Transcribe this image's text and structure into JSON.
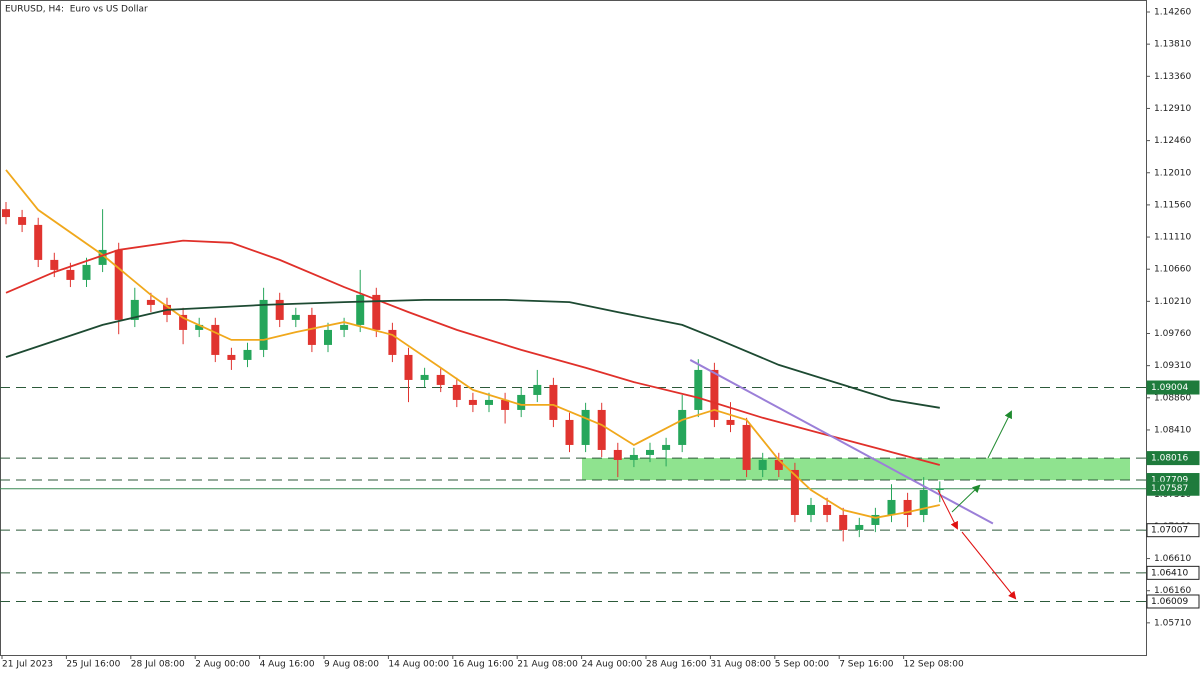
{
  "chart_data": {
    "type": "candlestick",
    "title": "EURUSD, H4:  Euro vs US Dollar",
    "categories": [
      "21 Jul 2023",
      null,
      null,
      null,
      "25 Jul 16:00",
      null,
      null,
      null,
      "28 Jul 08:00",
      null,
      null,
      null,
      "2 Aug 00:00",
      null,
      null,
      null,
      "4 Aug 16:00",
      null,
      null,
      null,
      "9 Aug 08:00",
      null,
      null,
      null,
      "14 Aug 00:00",
      null,
      null,
      null,
      "16 Aug 16:00",
      null,
      null,
      null,
      "21 Aug 08:00",
      null,
      null,
      null,
      "24 Aug 00:00",
      null,
      null,
      null,
      "28 Aug 16:00",
      null,
      null,
      null,
      "31 Aug 08:00",
      null,
      null,
      null,
      "5 Sep 00:00",
      null,
      null,
      null,
      "7 Sep 16:00",
      null,
      null,
      null,
      "12 Sep 08:00",
      null,
      null
    ],
    "open": [
      1.115,
      1.1139,
      1.1128,
      1.1079,
      1.1065,
      1.1051,
      1.1072,
      1.1093,
      1.0995,
      1.1023,
      1.1016,
      1.1002,
      1.0981,
      1.0988,
      1.0946,
      1.0939,
      1.0953,
      1.1023,
      1.0995,
      1.1002,
      1.096,
      1.0981,
      1.0988,
      1.103,
      1.0981,
      1.0946,
      1.0911,
      1.0918,
      1.0904,
      1.0883,
      1.0876,
      1.0883,
      1.0869,
      1.089,
      1.0904,
      1.0855,
      1.082,
      1.0869,
      1.0813,
      1.0799,
      1.0806,
      1.0813,
      1.082,
      1.0869,
      1.0925,
      1.0855,
      1.0848,
      1.0785,
      1.0799,
      1.0785,
      1.0722,
      1.0736,
      1.0722,
      1.0701,
      1.0708,
      1.0722,
      1.0743,
      1.0722,
      1.0757
    ],
    "high": [
      1.116,
      1.1149,
      1.1138,
      1.1089,
      1.1075,
      1.1082,
      1.115,
      1.1103,
      1.104,
      1.1033,
      1.1026,
      1.1012,
      1.0998,
      1.0998,
      1.0956,
      1.0963,
      1.104,
      1.1033,
      1.1012,
      1.1012,
      1.0991,
      1.0998,
      1.1065,
      1.104,
      1.0991,
      1.0956,
      1.0928,
      1.0928,
      1.0914,
      1.0893,
      1.0893,
      1.0893,
      1.09,
      1.0925,
      1.0914,
      1.0865,
      1.0879,
      1.0879,
      1.0823,
      1.0816,
      1.0823,
      1.083,
      1.089,
      1.094,
      1.0935,
      1.088,
      1.0858,
      1.0809,
      1.0809,
      1.0795,
      1.0746,
      1.0746,
      1.0732,
      1.0718,
      1.0732,
      1.0765,
      1.0753,
      1.0775,
      1.0769
    ],
    "low": [
      1.1129,
      1.1118,
      1.1069,
      1.1055,
      1.1041,
      1.1041,
      1.1062,
      1.0975,
      1.0985,
      1.1006,
      1.0992,
      1.0961,
      1.0971,
      1.0936,
      1.0925,
      1.0929,
      1.0943,
      1.0985,
      1.0985,
      1.095,
      1.095,
      1.0971,
      1.0978,
      1.0971,
      1.0936,
      1.088,
      1.0901,
      1.0894,
      1.0873,
      1.0866,
      1.0866,
      1.085,
      1.0859,
      1.088,
      1.0845,
      1.081,
      1.081,
      1.0803,
      1.0775,
      1.0789,
      1.0796,
      1.079,
      1.081,
      1.0859,
      1.0845,
      1.0838,
      1.0775,
      1.0775,
      1.0775,
      1.0712,
      1.0712,
      1.0712,
      1.0685,
      1.0691,
      1.0698,
      1.0712,
      1.0705,
      1.0712,
      1.074
    ],
    "close": [
      1.1139,
      1.1128,
      1.1079,
      1.1065,
      1.1051,
      1.1072,
      1.1093,
      1.0995,
      1.1023,
      1.1016,
      1.1002,
      1.0981,
      1.0988,
      1.0946,
      1.0939,
      1.0953,
      1.1023,
      1.0995,
      1.1002,
      1.096,
      1.0981,
      1.0988,
      1.103,
      1.0981,
      1.0946,
      1.0911,
      1.0918,
      1.0904,
      1.0883,
      1.0876,
      1.0883,
      1.0869,
      1.089,
      1.0904,
      1.0855,
      1.082,
      1.0869,
      1.0813,
      1.0799,
      1.0806,
      1.0813,
      1.082,
      1.0869,
      1.0925,
      1.0855,
      1.0848,
      1.0785,
      1.0799,
      1.0785,
      1.0722,
      1.0736,
      1.0722,
      1.0701,
      1.0708,
      1.0722,
      1.0743,
      1.0722,
      1.0757,
      1.0759
    ],
    "up_color": "#26a65b",
    "down_color": "#e0342f",
    "series": [
      {
        "color": "#f0a81c",
        "x": [
          0,
          2,
          6,
          9,
          11,
          14,
          16,
          18,
          21,
          24,
          27,
          29,
          32,
          34,
          37,
          39,
          42,
          44,
          46,
          48,
          50,
          52,
          54,
          56,
          58
        ],
        "values": [
          1.1205,
          1.1149,
          1.1086,
          1.103,
          1.0998,
          1.0967,
          1.0967,
          1.0978,
          1.0992,
          1.0974,
          1.0928,
          1.0897,
          1.0876,
          1.0876,
          1.0848,
          1.082,
          1.0855,
          1.0869,
          1.0855,
          1.0799,
          1.0757,
          1.0729,
          1.0718,
          1.0726,
          1.0736
        ]
      },
      {
        "color": "#e0302a",
        "x": [
          0,
          3,
          7,
          11,
          14,
          17,
          21,
          25,
          28,
          32,
          36,
          39,
          43,
          47,
          51,
          55,
          58
        ],
        "values": [
          1.1033,
          1.1062,
          1.1093,
          1.1106,
          1.1103,
          1.1079,
          1.1041,
          1.1006,
          1.0981,
          1.0953,
          1.0928,
          1.0908,
          1.0886,
          1.0858,
          1.0834,
          1.081,
          1.0792
        ]
      },
      {
        "color": "#1d4a32",
        "x": [
          0,
          6,
          10,
          16,
          21,
          26,
          31,
          35,
          38,
          42,
          44,
          48,
          52,
          55,
          58
        ],
        "values": [
          1.0943,
          1.0988,
          1.1009,
          1.1016,
          1.102,
          1.1023,
          1.1023,
          1.102,
          1.1006,
          1.0988,
          1.097,
          1.0932,
          1.0904,
          1.0883,
          1.0872
        ]
      }
    ],
    "trendline": {
      "color": "#9b7fd8",
      "x": [
        42.5,
        61.3
      ],
      "values": [
        1.0939,
        1.071
      ]
    },
    "zone": {
      "from": 1.07709,
      "to": 1.08016,
      "color": "#8fe38f"
    },
    "levels": [
      {
        "value": 1.09004,
        "box": "#1e7b3c"
      },
      {
        "value": 1.08016,
        "box": "#1e7b3c"
      },
      {
        "value": 1.07709,
        "box": "#1e7b3c"
      },
      {
        "value": 1.07007,
        "box": "#ffffff"
      },
      {
        "value": 1.0641,
        "label": "1.06410",
        "box": "#ffffff"
      },
      {
        "value": 1.06009,
        "box": "#ffffff"
      }
    ],
    "last": 1.07587,
    "ylim": [
      1.0526,
      1.144
    ],
    "yticks": [
      {
        "value": 1.1426,
        "label": "1.14260"
      },
      {
        "value": 1.1381,
        "label": "1.13810"
      },
      {
        "value": 1.1336,
        "label": "1.13360"
      },
      {
        "value": 1.1291,
        "label": "1.12910"
      },
      {
        "value": 1.1246,
        "label": "1.12460"
      },
      {
        "value": 1.1201,
        "label": "1.12010"
      },
      {
        "value": 1.1156,
        "label": "1.11560"
      },
      {
        "value": 1.1111,
        "label": "1.11110"
      },
      {
        "value": 1.1066,
        "label": "1.10660"
      },
      {
        "value": 1.1021,
        "label": "1.10210"
      },
      {
        "value": 1.0976,
        "label": "1.09760"
      },
      {
        "value": 1.0931,
        "label": "1.09310"
      },
      {
        "value": 1.0886,
        "label": "1.08860"
      },
      {
        "value": 1.0841,
        "label": "1.08410"
      },
      {
        "value": 1.0796,
        "label": "1.07960"
      },
      {
        "value": 1.0751,
        "label": "1.07510"
      },
      {
        "value": 1.0706,
        "label": "1.07060"
      },
      {
        "value": 1.0661,
        "label": "1.06610"
      },
      {
        "value": 1.0616,
        "label": "1.06160"
      },
      {
        "value": 1.0571,
        "label": "1.05710"
      }
    ]
  }
}
